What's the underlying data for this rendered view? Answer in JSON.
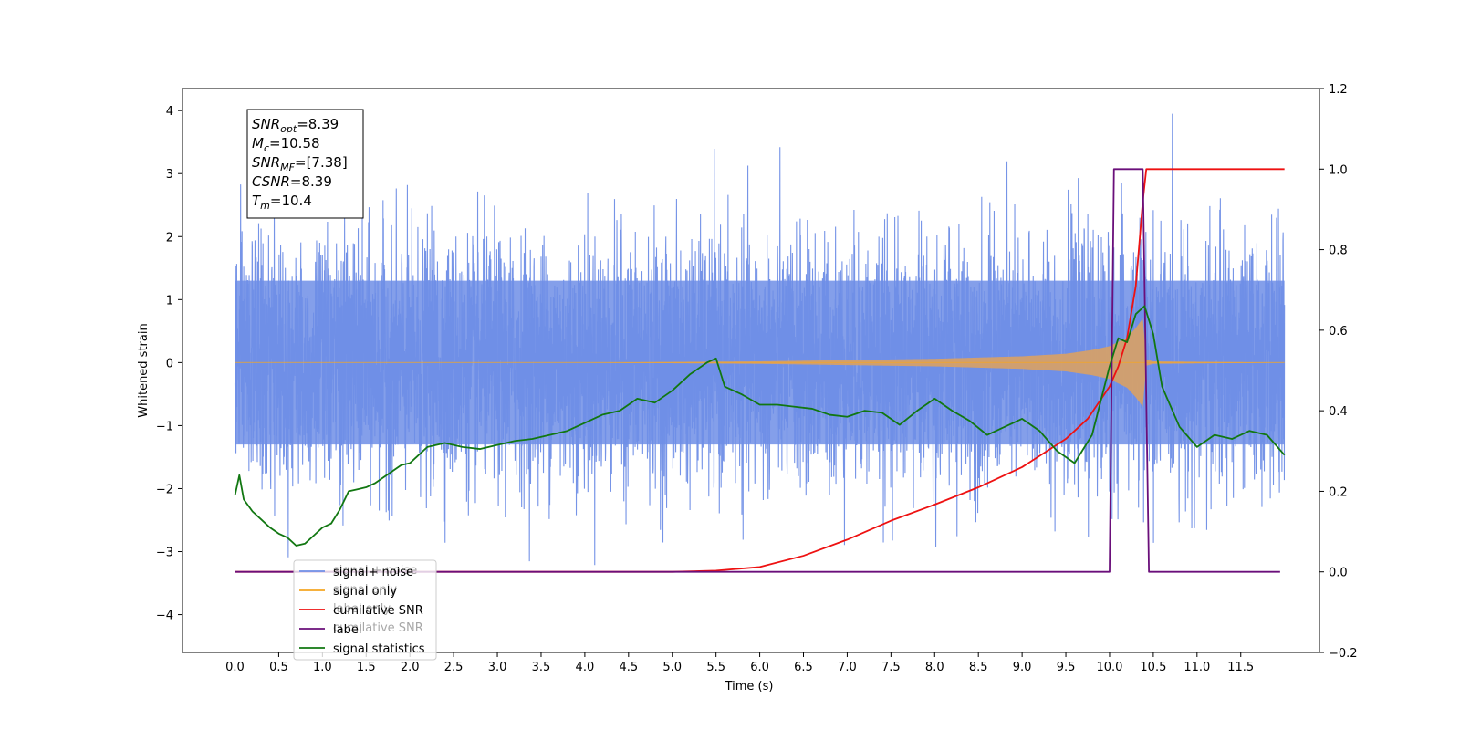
{
  "chart_data": {
    "type": "line",
    "xlabel": "Time (s)",
    "ylabel_left": "Whitened strain",
    "ylabel_right": "",
    "xlim": [
      -0.6,
      12.4
    ],
    "ylim_left": [
      -4.6,
      4.35
    ],
    "ylim_right": [
      -0.2,
      1.2
    ],
    "x_ticks": [
      0.0,
      0.5,
      1.0,
      1.5,
      2.0,
      2.5,
      3.0,
      3.5,
      4.0,
      4.5,
      5.0,
      5.5,
      6.0,
      6.5,
      7.0,
      7.5,
      8.0,
      8.5,
      9.0,
      9.5,
      10.0,
      10.5,
      11.0,
      11.5
    ],
    "x_tick_labels": [
      "0.0",
      "0.5",
      "1.0",
      "1.5",
      "2.0",
      "2.5",
      "3.0",
      "3.5",
      "4.0",
      "4.5",
      "5.0",
      "5.5",
      "6.0",
      "6.5",
      "7.0",
      "7.5",
      "8.0",
      "8.5",
      "9.0",
      "9.5",
      "10.0",
      "10.5",
      "11.0",
      "11.5"
    ],
    "y_ticks_left": [
      -4,
      -3,
      -2,
      -1,
      0,
      1,
      2,
      3,
      4
    ],
    "y_tick_labels_left": [
      "−4",
      "−3",
      "−2",
      "−1",
      "0",
      "1",
      "2",
      "3",
      "4"
    ],
    "y_ticks_right": [
      -0.2,
      0.0,
      0.2,
      0.4,
      0.6,
      0.8,
      1.0,
      1.2
    ],
    "y_tick_labels_right": [
      "−0.2",
      "0.0",
      "0.2",
      "0.4",
      "0.6",
      "0.8",
      "1.0",
      "1.2"
    ],
    "grid": false,
    "legend_placement": "lower-left",
    "series": [
      {
        "name": "signal+ noise",
        "axis": "left",
        "color": "#6f8ee6",
        "x_range": [
          0.0,
          12.0
        ],
        "band_upper": 1.3,
        "band_lower": -1.3,
        "peak_max": 3.95,
        "peak_min": -3.4
      },
      {
        "name": "signal only",
        "axis": "left",
        "color": "#f5a623",
        "fill_color": "#d4a06a",
        "x_range": [
          0.0,
          12.0
        ],
        "merger_time": 10.4,
        "envelope": {
          "x": [
            0.0,
            4.0,
            6.0,
            7.0,
            8.0,
            9.0,
            9.5,
            9.8,
            10.0,
            10.2,
            10.3,
            10.38,
            10.42,
            10.5,
            12.0
          ],
          "y": [
            0.0,
            0.0,
            0.02,
            0.04,
            0.06,
            0.1,
            0.14,
            0.2,
            0.26,
            0.4,
            0.55,
            0.7,
            0.05,
            0.02,
            0.0
          ]
        }
      },
      {
        "name": "cumilative SNR",
        "axis": "right",
        "color": "#ee1111",
        "x": [
          0.0,
          5.0,
          5.5,
          6.0,
          6.5,
          7.0,
          7.5,
          8.0,
          8.5,
          9.0,
          9.5,
          9.75,
          10.0,
          10.1,
          10.2,
          10.3,
          10.38,
          10.42,
          11.0,
          11.5,
          12.0
        ],
        "y": [
          0.0,
          0.0,
          0.003,
          0.012,
          0.04,
          0.08,
          0.127,
          0.167,
          0.21,
          0.26,
          0.33,
          0.38,
          0.46,
          0.51,
          0.58,
          0.71,
          0.92,
          1.0,
          1.0,
          1.0,
          1.0
        ]
      },
      {
        "name": "label",
        "axis": "right",
        "color": "#6a0f7a",
        "x": [
          0.0,
          10.0,
          10.05,
          10.38,
          10.45,
          11.95
        ],
        "y": [
          0.0,
          0.0,
          1.0,
          1.0,
          0.0,
          0.0
        ]
      },
      {
        "name": "signal statistics",
        "axis": "right",
        "color": "#117711",
        "x": [
          0.0,
          0.05,
          0.1,
          0.2,
          0.3,
          0.4,
          0.5,
          0.6,
          0.7,
          0.8,
          0.9,
          1.0,
          1.1,
          1.2,
          1.3,
          1.4,
          1.5,
          1.6,
          1.7,
          1.8,
          1.9,
          2.0,
          2.2,
          2.4,
          2.6,
          2.8,
          3.0,
          3.2,
          3.4,
          3.6,
          3.8,
          4.0,
          4.2,
          4.4,
          4.6,
          4.8,
          5.0,
          5.2,
          5.4,
          5.5,
          5.6,
          5.8,
          6.0,
          6.2,
          6.4,
          6.6,
          6.8,
          7.0,
          7.2,
          7.4,
          7.6,
          7.8,
          8.0,
          8.2,
          8.4,
          8.6,
          8.8,
          9.0,
          9.2,
          9.4,
          9.6,
          9.8,
          10.0,
          10.1,
          10.2,
          10.3,
          10.4,
          10.5,
          10.6,
          10.8,
          11.0,
          11.2,
          11.4,
          11.6,
          11.8,
          12.0
        ],
        "y": [
          0.19,
          0.24,
          0.18,
          0.15,
          0.13,
          0.11,
          0.095,
          0.085,
          0.065,
          0.07,
          0.09,
          0.11,
          0.12,
          0.155,
          0.2,
          0.205,
          0.21,
          0.22,
          0.235,
          0.25,
          0.265,
          0.27,
          0.31,
          0.32,
          0.31,
          0.305,
          0.315,
          0.325,
          0.33,
          0.34,
          0.35,
          0.37,
          0.39,
          0.4,
          0.43,
          0.42,
          0.45,
          0.49,
          0.52,
          0.53,
          0.46,
          0.44,
          0.415,
          0.415,
          0.41,
          0.405,
          0.39,
          0.385,
          0.4,
          0.395,
          0.365,
          0.4,
          0.43,
          0.4,
          0.375,
          0.34,
          0.36,
          0.38,
          0.35,
          0.3,
          0.27,
          0.34,
          0.51,
          0.58,
          0.57,
          0.64,
          0.66,
          0.59,
          0.46,
          0.36,
          0.31,
          0.34,
          0.33,
          0.35,
          0.34,
          0.29
        ]
      }
    ],
    "info_box": {
      "lines": [
        {
          "name": "SNR",
          "sub": "opt",
          "value": "=8.39"
        },
        {
          "name": "M",
          "sub": "c",
          "value": "=10.58"
        },
        {
          "name": "SNR",
          "sub": "MF",
          "value": "=[7.38]"
        },
        {
          "name": "CSNR",
          "sub": "",
          "value": "=8.39"
        },
        {
          "name": "T",
          "sub": "m",
          "value": "=10.4"
        }
      ]
    },
    "legend_ghost_labels": [
      "signal + noise",
      "signal only",
      "label only",
      "cumilative SNR"
    ]
  }
}
